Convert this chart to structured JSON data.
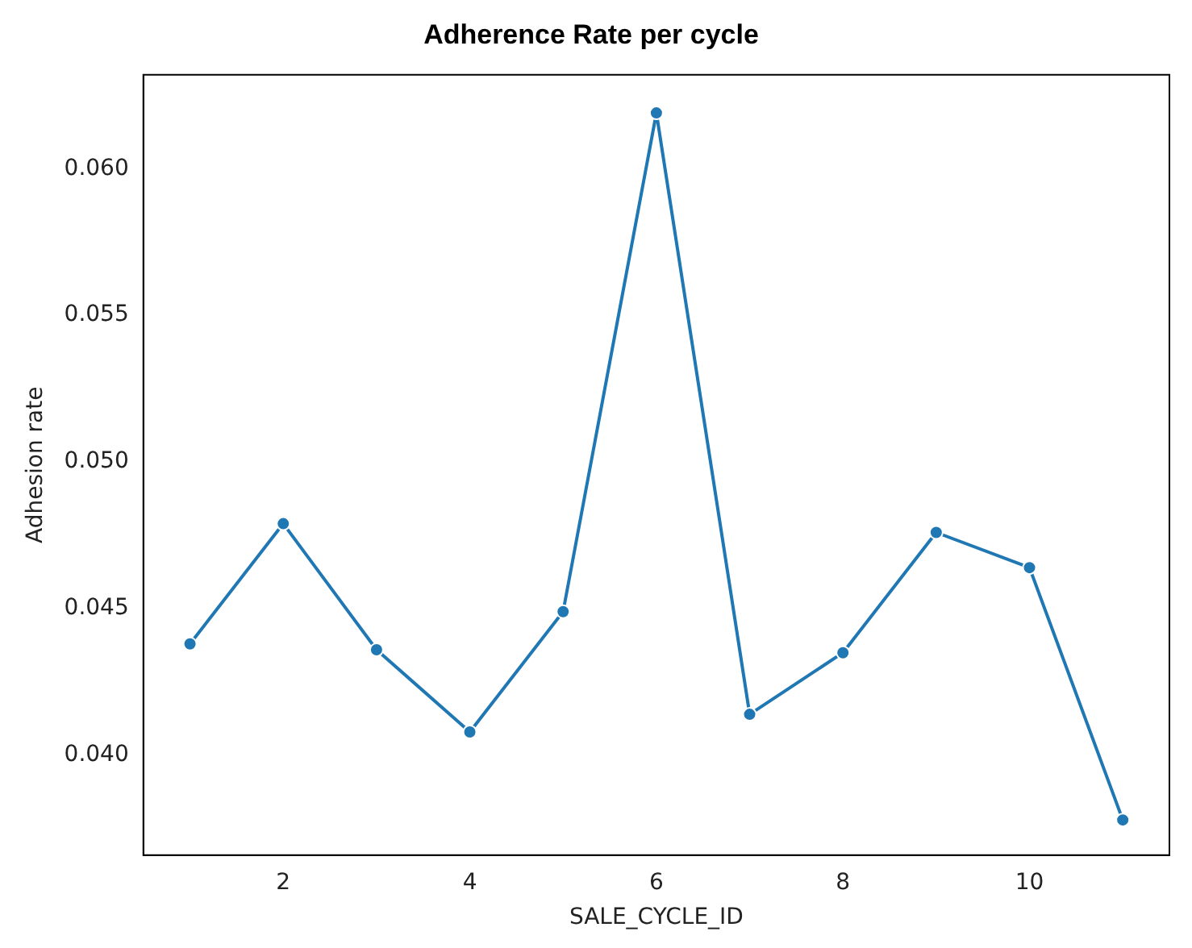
{
  "chart_data": {
    "type": "line",
    "title": "Adherence Rate per cycle",
    "xlabel": "SALE_CYCLE_ID",
    "ylabel": "Adhesion rate",
    "x": [
      1,
      2,
      3,
      4,
      5,
      6,
      7,
      8,
      9,
      10,
      11
    ],
    "series": [
      {
        "color": "#1f77b4",
        "values": [
          0.0438,
          0.0479,
          0.0436,
          0.0408,
          0.0449,
          0.0619,
          0.0414,
          0.0435,
          0.0476,
          0.0464,
          0.0378
        ]
      }
    ],
    "xlim": [
      0.5,
      11.5
    ],
    "xticks": [
      2,
      4,
      6,
      8,
      10
    ],
    "ylim": [
      0.0366,
      0.0632
    ],
    "yticks": [
      {
        "value": 0.04,
        "label": "0.040"
      },
      {
        "value": 0.045,
        "label": "0.045"
      },
      {
        "value": 0.05,
        "label": "0.050"
      },
      {
        "value": 0.055,
        "label": "0.055"
      },
      {
        "value": 0.06,
        "label": "0.060"
      }
    ],
    "grid": false,
    "legend": false,
    "marker": "circle",
    "line_style": "solid"
  }
}
